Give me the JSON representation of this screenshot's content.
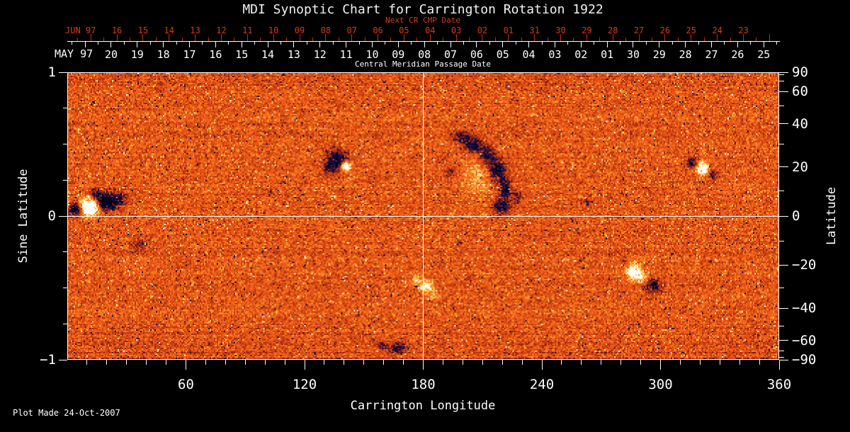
{
  "title": "MDI Synoptic Chart for Carrington Rotation 1922",
  "annotations": {
    "next_cr_label": "Next CR CMP Date",
    "cmp_label": "Central Meridian Passage Date",
    "plot_made": "Plot Made 24-Oct-2007"
  },
  "colors": {
    "background": "#000000",
    "foreground": "#ffffff",
    "next_cr_red": "#d63c10",
    "next_cr_tick_red": "#bb3008",
    "base_orange": "#e85516"
  },
  "chart_data": {
    "type": "heatmap",
    "title": "MDI Synoptic Chart for Carrington Rotation 1922",
    "xlabel": "Carrington Longitude",
    "ylabel_left": "Sine Latitude",
    "ylabel_right": "Latitude",
    "xlim": [
      0,
      360
    ],
    "ylim_sine": [
      -1,
      1
    ],
    "x_major_ticks": [
      60,
      120,
      180,
      240,
      300,
      360
    ],
    "x_minor_step_deg": 10,
    "y_left_major_ticks": [
      1,
      0,
      -1
    ],
    "y_left_minor_ticks": [
      0.75,
      0.5,
      0.25,
      -0.25,
      -0.5,
      -0.75
    ],
    "y_right_major_ticks_deg": [
      90,
      60,
      40,
      20,
      0,
      -20,
      -40,
      -60,
      -90
    ],
    "y_right_minor_ticks_deg": [
      80,
      70,
      50,
      30,
      10,
      -10,
      -30,
      -50,
      -70,
      -80
    ],
    "reference_lines": {
      "longitude": 180,
      "sine_latitude": 0
    },
    "top_axis_next_cr": {
      "month_label": "JUN 97",
      "day_labels": [
        "16",
        "15",
        "14",
        "13",
        "12",
        "11",
        "10",
        "09",
        "08",
        "07",
        "06",
        "05",
        "04",
        "03",
        "02",
        "01",
        "31",
        "30",
        "29",
        "28",
        "27",
        "26",
        "25",
        "24",
        "23"
      ],
      "first_label_lon": 25.1,
      "label_step_lon": 13.2
    },
    "top_axis_cmp": {
      "month_label": "MAY 97",
      "day_labels": [
        "20",
        "19",
        "18",
        "17",
        "16",
        "15",
        "14",
        "13",
        "12",
        "11",
        "10",
        "09",
        "08",
        "07",
        "06",
        "05",
        "04",
        "03",
        "02",
        "01",
        "30",
        "29",
        "28",
        "27",
        "26",
        "25"
      ],
      "first_label_lon": 22.2,
      "label_step_lon": 13.2
    },
    "palette_stops": [
      [
        -1.3,
        [
          0,
          0,
          22
        ]
      ],
      [
        -0.9,
        [
          14,
          14,
          86
        ]
      ],
      [
        -0.62,
        [
          92,
          22,
          34
        ]
      ],
      [
        -0.3,
        [
          186,
          52,
          14
        ]
      ],
      [
        0.0,
        [
          232,
          84,
          22
        ]
      ],
      [
        0.28,
        [
          247,
          118,
          30
        ]
      ],
      [
        0.52,
        [
          251,
          180,
          56
        ]
      ],
      [
        0.75,
        [
          254,
          228,
          126
        ]
      ],
      [
        1.0,
        [
          255,
          255,
          255
        ]
      ]
    ],
    "noise": {
      "seed": 1922,
      "base_amplitude": 0.52,
      "dark_speckle_prob": 0.013,
      "bright_speckle_prob": 0.032,
      "row_bias": 0.08
    },
    "active_regions": [
      {
        "lon": 10.5,
        "sin_lat": 0.07,
        "amp": 2.3,
        "sig_lon": 3.5,
        "sig_slat": 0.04
      },
      {
        "lon": 3.5,
        "sin_lat": 0.05,
        "amp": -1.7,
        "sig_lon": 2.4,
        "sig_slat": 0.03
      },
      {
        "lon": 19,
        "sin_lat": 0.1,
        "amp": -1.8,
        "sig_lon": 3.8,
        "sig_slat": 0.04
      },
      {
        "lon": 26,
        "sin_lat": 0.13,
        "amp": -1.0,
        "sig_lon": 2.4,
        "sig_slat": 0.028
      },
      {
        "lon": 14,
        "sin_lat": 0.16,
        "amp": -0.9,
        "sig_lon": 2.0,
        "sig_slat": 0.024
      },
      {
        "lon": 36,
        "sin_lat": -0.2,
        "amp": -0.5,
        "sig_lon": 2.6,
        "sig_slat": 0.035
      },
      {
        "lon": 102,
        "sin_lat": 0.17,
        "amp": -0.5,
        "sig_lon": 1.4,
        "sig_slat": 0.02
      },
      {
        "lon": 136,
        "sin_lat": 0.4,
        "amp": -1.6,
        "sig_lon": 3.4,
        "sig_slat": 0.045
      },
      {
        "lon": 140.5,
        "sin_lat": 0.355,
        "amp": 2.1,
        "sig_lon": 1.7,
        "sig_slat": 0.022
      },
      {
        "lon": 132,
        "sin_lat": 0.33,
        "amp": -0.8,
        "sig_lon": 2.2,
        "sig_slat": 0.026
      },
      {
        "lon": 199,
        "sin_lat": 0.56,
        "amp": -0.9,
        "sig_lon": 2.8,
        "sig_slat": 0.025
      },
      {
        "lon": 205,
        "sin_lat": 0.5,
        "amp": -1.3,
        "sig_lon": 3.4,
        "sig_slat": 0.035
      },
      {
        "lon": 212,
        "sin_lat": 0.43,
        "amp": -1.1,
        "sig_lon": 2.8,
        "sig_slat": 0.045
      },
      {
        "lon": 217,
        "sin_lat": 0.33,
        "amp": -1.3,
        "sig_lon": 2.6,
        "sig_slat": 0.05
      },
      {
        "lon": 221,
        "sin_lat": 0.2,
        "amp": -1.2,
        "sig_lon": 2.2,
        "sig_slat": 0.055
      },
      {
        "lon": 219,
        "sin_lat": 0.07,
        "amp": -1.2,
        "sig_lon": 2.8,
        "sig_slat": 0.035
      },
      {
        "lon": 207,
        "sin_lat": 0.28,
        "amp": 0.45,
        "sig_lon": 5.0,
        "sig_slat": 0.1
      },
      {
        "lon": 227,
        "sin_lat": 0.13,
        "amp": -0.7,
        "sig_lon": 1.8,
        "sig_slat": 0.035
      },
      {
        "lon": 194,
        "sin_lat": 0.31,
        "amp": -0.55,
        "sig_lon": 1.8,
        "sig_slat": 0.025
      },
      {
        "lon": 263,
        "sin_lat": 0.1,
        "amp": -0.45,
        "sig_lon": 1.8,
        "sig_slat": 0.025
      },
      {
        "lon": 316,
        "sin_lat": 0.375,
        "amp": -1.2,
        "sig_lon": 1.9,
        "sig_slat": 0.028
      },
      {
        "lon": 321,
        "sin_lat": 0.34,
        "amp": 1.9,
        "sig_lon": 2.1,
        "sig_slat": 0.027
      },
      {
        "lon": 327,
        "sin_lat": 0.3,
        "amp": -0.85,
        "sig_lon": 1.8,
        "sig_slat": 0.023
      },
      {
        "lon": 282,
        "sin_lat": -0.32,
        "amp": -0.5,
        "sig_lon": 1.8,
        "sig_slat": 0.022
      },
      {
        "lon": 286.5,
        "sin_lat": -0.385,
        "amp": 1.7,
        "sig_lon": 2.6,
        "sig_slat": 0.038
      },
      {
        "lon": 291,
        "sin_lat": -0.43,
        "amp": 0.8,
        "sig_lon": 1.8,
        "sig_slat": 0.022
      },
      {
        "lon": 296.5,
        "sin_lat": -0.48,
        "amp": -1.2,
        "sig_lon": 2.6,
        "sig_slat": 0.03
      },
      {
        "lon": 176.5,
        "sin_lat": -0.44,
        "amp": 0.7,
        "sig_lon": 1.8,
        "sig_slat": 0.022
      },
      {
        "lon": 181,
        "sin_lat": -0.49,
        "amp": 1.3,
        "sig_lon": 2.3,
        "sig_slat": 0.028
      },
      {
        "lon": 185,
        "sin_lat": -0.55,
        "amp": 0.5,
        "sig_lon": 1.8,
        "sig_slat": 0.02
      },
      {
        "lon": 159,
        "sin_lat": -0.9,
        "amp": -0.7,
        "sig_lon": 1.8,
        "sig_slat": 0.018
      },
      {
        "lon": 167,
        "sin_lat": -0.92,
        "amp": -1.1,
        "sig_lon": 2.6,
        "sig_slat": 0.022
      }
    ]
  }
}
